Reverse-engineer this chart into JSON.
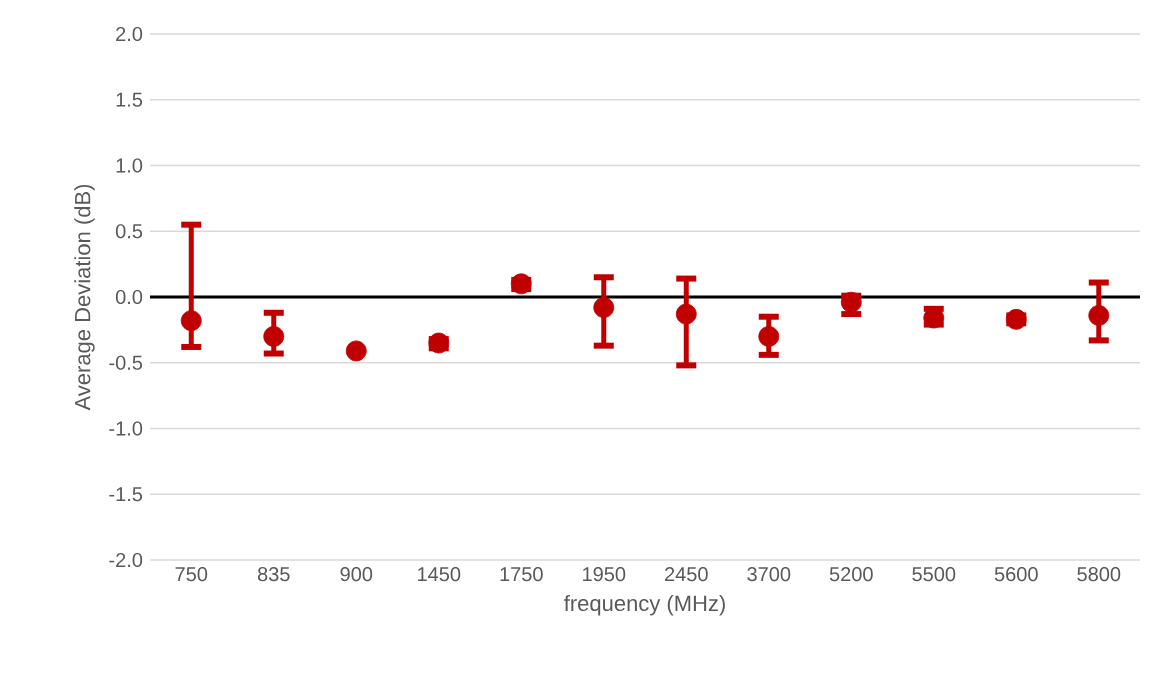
{
  "chart_data": {
    "type": "scatter",
    "xlabel": "frequency (MHz)",
    "ylabel": "Average Deviation (dB)",
    "categories": [
      "750",
      "835",
      "900",
      "1450",
      "1750",
      "1950",
      "2450",
      "3700",
      "5200",
      "5500",
      "5600",
      "5800"
    ],
    "values": [
      -0.18,
      -0.3,
      -0.41,
      -0.35,
      0.1,
      -0.08,
      -0.13,
      -0.3,
      -0.04,
      -0.16,
      -0.17,
      -0.14
    ],
    "errors": [
      [
        -0.38,
        0.55
      ],
      [
        -0.43,
        -0.12
      ],
      null,
      [
        -0.39,
        -0.32
      ],
      [
        0.06,
        0.13
      ],
      [
        -0.37,
        0.15
      ],
      [
        -0.52,
        0.14
      ],
      [
        -0.44,
        -0.15
      ],
      [
        -0.13,
        0.01
      ],
      [
        -0.21,
        -0.09
      ],
      [
        -0.2,
        -0.14
      ],
      [
        -0.33,
        0.11
      ]
    ],
    "color": "#c00000",
    "marker": "circle",
    "grid": "y",
    "ylim": [
      -2.0,
      2.0
    ],
    "yticks": [
      {
        "value": -2,
        "label": "-2.0"
      },
      {
        "value": -1.5,
        "label": "-1.5"
      },
      {
        "value": -1,
        "label": "-1.0"
      },
      {
        "value": -0.5,
        "label": "-0.5"
      },
      {
        "value": 0,
        "label": "0.0"
      },
      {
        "value": 0.5,
        "label": "0.5"
      },
      {
        "value": 1,
        "label": "1.0"
      },
      {
        "value": 1.5,
        "label": "1.5"
      },
      {
        "value": 2,
        "label": "2.0"
      }
    ],
    "ref_lines": [
      {
        "axis": "y",
        "value": 0,
        "color": "#000000"
      }
    ]
  }
}
